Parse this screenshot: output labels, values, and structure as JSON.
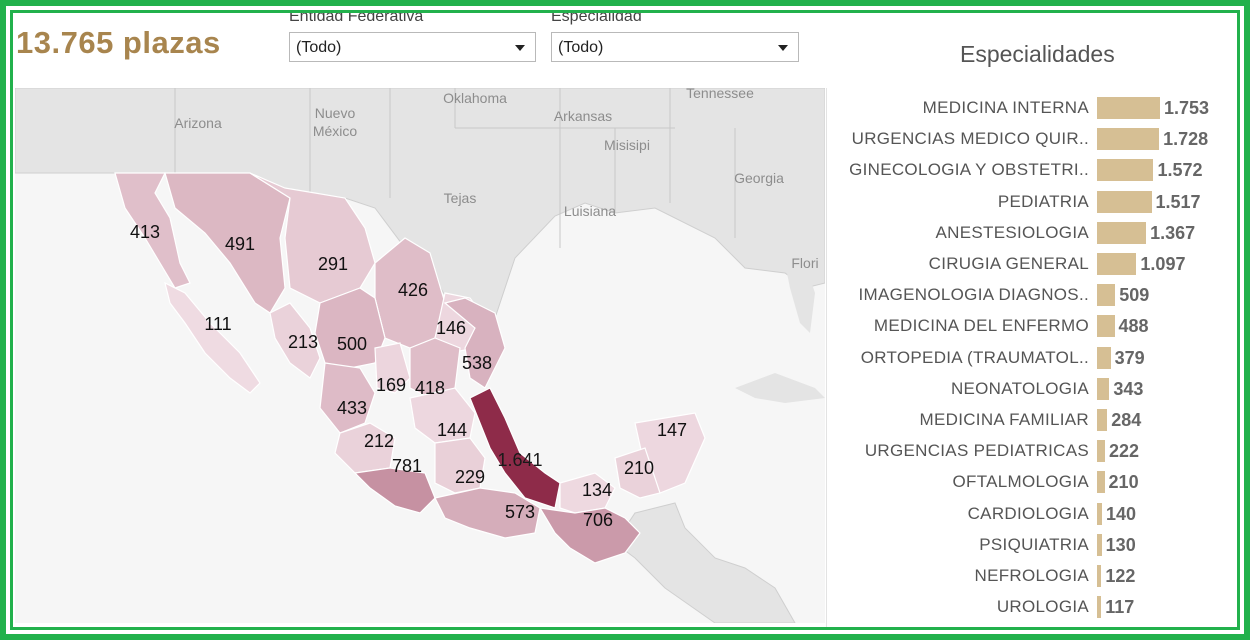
{
  "summary": {
    "total_label": "13.765 plazas"
  },
  "filters": {
    "entidad": {
      "label": "Entidad Federativa",
      "value": "(Todo)"
    },
    "especialidad": {
      "label": "Especialidad",
      "value": "(Todo)"
    }
  },
  "map": {
    "base_labels": [
      "Arizona",
      "Nuevo México",
      "Oklahoma",
      "Tennessee",
      "Arkansas",
      "Misisipi",
      "Tejas",
      "Georgia",
      "Luisiana",
      "Flori"
    ],
    "state_values": [
      {
        "value": "413",
        "shade": 0.2
      },
      {
        "value": "491",
        "shade": 0.24
      },
      {
        "value": "291",
        "shade": 0.14
      },
      {
        "value": "426",
        "shade": 0.21
      },
      {
        "value": "111",
        "shade": 0.05
      },
      {
        "value": "146",
        "shade": 0.07
      },
      {
        "value": "213",
        "shade": 0.1
      },
      {
        "value": "500",
        "shade": 0.25
      },
      {
        "value": "538",
        "shade": 0.27
      },
      {
        "value": "169",
        "shade": 0.08
      },
      {
        "value": "418",
        "shade": 0.21
      },
      {
        "value": "433",
        "shade": 0.22
      },
      {
        "value": "144",
        "shade": 0.07
      },
      {
        "value": "212",
        "shade": 0.1
      },
      {
        "value": "147",
        "shade": 0.07
      },
      {
        "value": "1.641",
        "shade": 1.0
      },
      {
        "value": "781",
        "shade": 0.45
      },
      {
        "value": "229",
        "shade": 0.11
      },
      {
        "value": "210",
        "shade": 0.1
      },
      {
        "value": "134",
        "shade": 0.06
      },
      {
        "value": "573",
        "shade": 0.3
      },
      {
        "value": "706",
        "shade": 0.4
      }
    ],
    "colors": {
      "low": "#f4e4ea",
      "high": "#8e2b49",
      "land": "#e4e4e4",
      "sea": "#f6f6f6"
    }
  },
  "especialidades": {
    "title": "Especialidades",
    "bar_color": "#d6bf94",
    "max": 1753,
    "items": [
      {
        "name": "MEDICINA INTERNA",
        "label": "1.753",
        "value": 1753
      },
      {
        "name": "URGENCIAS MEDICO QUIR..",
        "label": "1.728",
        "value": 1728
      },
      {
        "name": "GINECOLOGIA Y OBSTETRI..",
        "label": "1.572",
        "value": 1572
      },
      {
        "name": "PEDIATRIA",
        "label": "1.517",
        "value": 1517
      },
      {
        "name": "ANESTESIOLOGIA",
        "label": "1.367",
        "value": 1367
      },
      {
        "name": "CIRUGIA GENERAL",
        "label": "1.097",
        "value": 1097
      },
      {
        "name": "IMAGENOLOGIA DIAGNOS..",
        "label": "509",
        "value": 509
      },
      {
        "name": "MEDICINA DEL ENFERMO",
        "label": "488",
        "value": 488
      },
      {
        "name": "ORTOPEDIA (TRAUMATOL..",
        "label": "379",
        "value": 379
      },
      {
        "name": "NEONATOLOGIA",
        "label": "343",
        "value": 343
      },
      {
        "name": "MEDICINA FAMILIAR",
        "label": "284",
        "value": 284
      },
      {
        "name": "URGENCIAS PEDIATRICAS",
        "label": "222",
        "value": 222
      },
      {
        "name": "OFTALMOLOGIA",
        "label": "210",
        "value": 210
      },
      {
        "name": "CARDIOLOGIA",
        "label": "140",
        "value": 140
      },
      {
        "name": "PSIQUIATRIA",
        "label": "130",
        "value": 130
      },
      {
        "name": "NEFROLOGIA",
        "label": "122",
        "value": 122
      },
      {
        "name": "UROLOGIA",
        "label": "117",
        "value": 117
      }
    ]
  }
}
